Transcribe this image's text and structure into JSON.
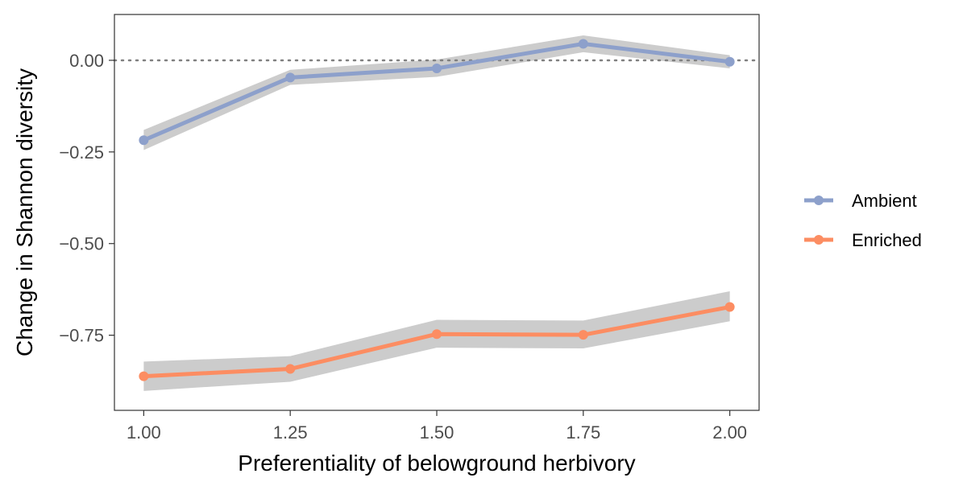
{
  "chart_data": {
    "type": "line",
    "title": "",
    "xlabel": "Preferentiality of belowground herbivory",
    "ylabel": "Change in Shannon diversity",
    "x": [
      1.0,
      1.25,
      1.5,
      1.75,
      2.0
    ],
    "x_tick_values": [
      1.0,
      1.25,
      1.5,
      1.75,
      2.0
    ],
    "x_tick_labels": [
      "1.00",
      "1.25",
      "1.50",
      "1.75",
      "2.00"
    ],
    "y_tick_values": [
      0.0,
      -0.25,
      -0.5,
      -0.75
    ],
    "y_tick_labels": [
      "0.00",
      "−0.25",
      "−0.50",
      "−0.75"
    ],
    "xlim": [
      0.95,
      2.05
    ],
    "ylim": [
      -0.955,
      0.125
    ],
    "reference_line": {
      "y": 0.0,
      "style": "dotted",
      "color": "#808080"
    },
    "grid": false,
    "legend_position": "right",
    "ribbon_color": "#cccccc",
    "series": [
      {
        "name": "Ambient",
        "color": "#8da0cb",
        "values": [
          -0.218,
          -0.047,
          -0.022,
          0.045,
          -0.004
        ],
        "lower": [
          -0.245,
          -0.067,
          -0.045,
          0.022,
          -0.022
        ],
        "upper": [
          -0.19,
          -0.026,
          0.002,
          0.068,
          0.014
        ]
      },
      {
        "name": "Enriched",
        "color": "#fc8d62",
        "values": [
          -0.862,
          -0.842,
          -0.747,
          -0.749,
          -0.673
        ],
        "lower": [
          -0.902,
          -0.877,
          -0.784,
          -0.786,
          -0.712
        ],
        "upper": [
          -0.822,
          -0.807,
          -0.708,
          -0.71,
          -0.63
        ]
      }
    ]
  }
}
